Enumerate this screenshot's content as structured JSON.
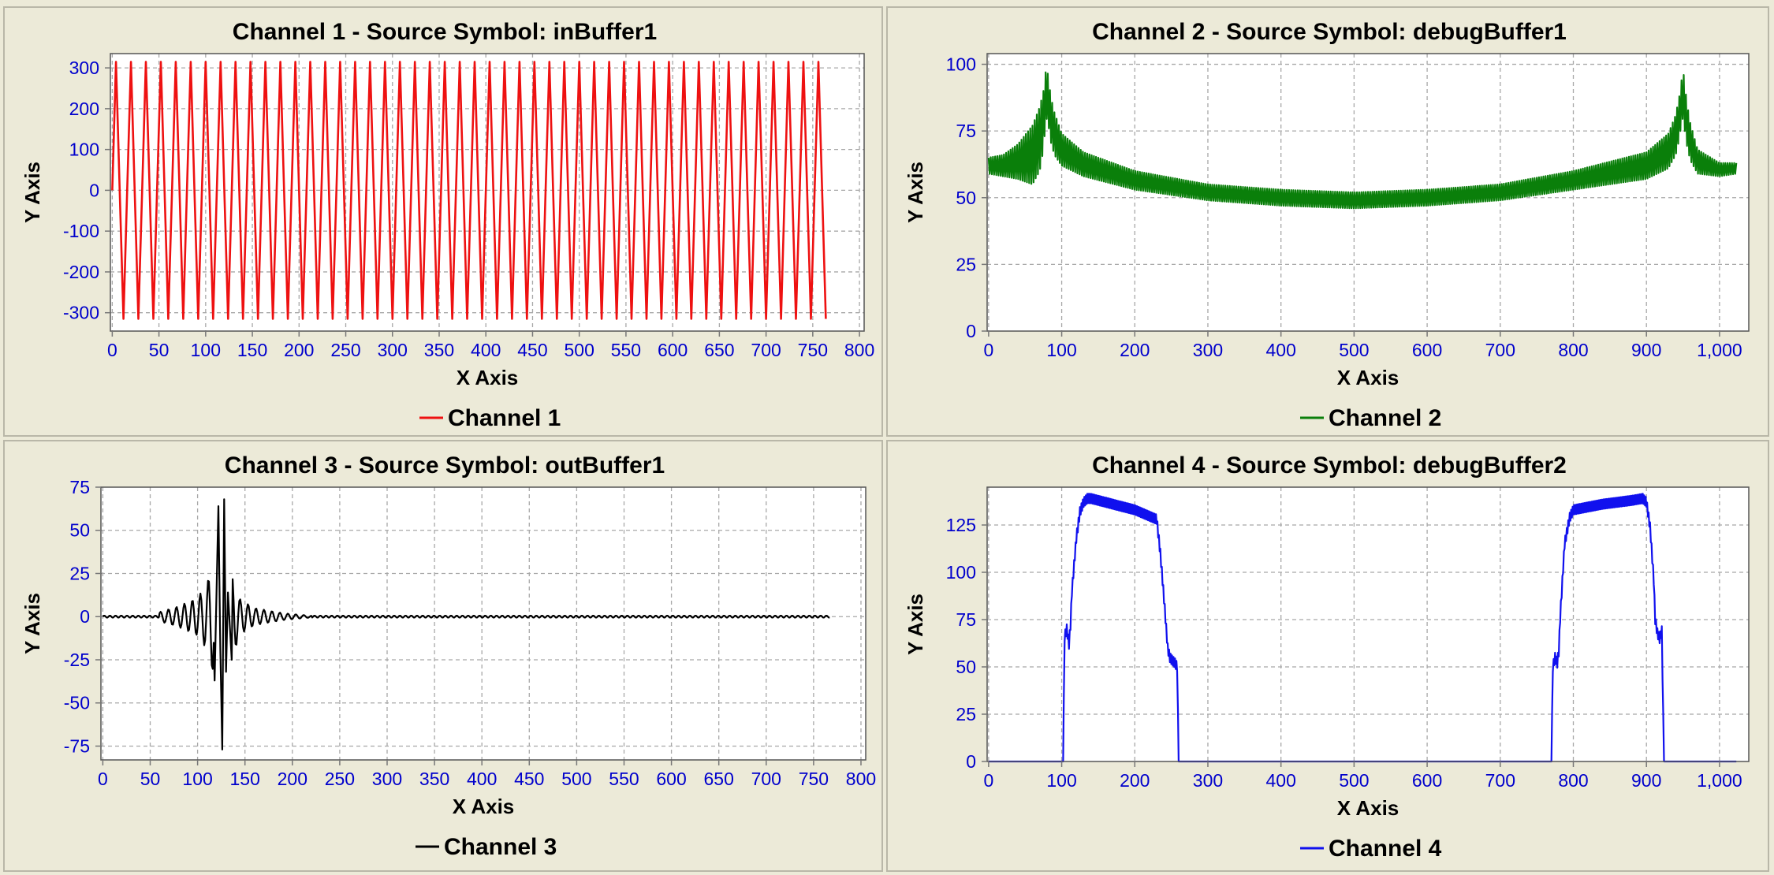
{
  "chart_data": [
    {
      "type": "line",
      "title": "Channel 1 - Source Symbol: inBuffer1",
      "xlabel": "X Axis",
      "ylabel": "Y Axis",
      "xlim": [
        -2,
        805
      ],
      "ylim": [
        -345,
        335
      ],
      "xticks": [
        0,
        50,
        100,
        150,
        200,
        250,
        300,
        350,
        400,
        450,
        500,
        550,
        600,
        650,
        700,
        750,
        800
      ],
      "xtick_labels": [
        "0",
        "50",
        "100",
        "150",
        "200",
        "250",
        "300",
        "350",
        "400",
        "450",
        "500",
        "550",
        "600",
        "650",
        "700",
        "750",
        "800"
      ],
      "yticks": [
        -300,
        -200,
        -100,
        0,
        100,
        200,
        300
      ],
      "ytick_labels": [
        "-300",
        "-200",
        "-100",
        "0",
        "100",
        "200",
        "300"
      ],
      "series": [
        {
          "name": "Channel 1",
          "color": "#ee1111",
          "model": "sine",
          "x_range": [
            0,
            767
          ],
          "amplitude": 315,
          "period": 16,
          "values": [
            0,
            315,
            0,
            -315
          ]
        }
      ]
    },
    {
      "type": "line",
      "title": "Channel 2 - Source Symbol: debugBuffer1",
      "xlabel": "X Axis",
      "ylabel": "Y Axis",
      "xlim": [
        -2,
        1040
      ],
      "ylim": [
        0,
        104
      ],
      "xticks": [
        0,
        100,
        200,
        300,
        400,
        500,
        600,
        700,
        800,
        900,
        1000
      ],
      "xtick_labels": [
        "0",
        "100",
        "200",
        "300",
        "400",
        "500",
        "600",
        "700",
        "800",
        "900",
        "1,000"
      ],
      "yticks": [
        0,
        25,
        50,
        75,
        100
      ],
      "ytick_labels": [
        "0",
        "25",
        "50",
        "75",
        "100"
      ],
      "series": [
        {
          "name": "Channel 2",
          "color": "#0a7f0a",
          "model": "envelope-oscillating",
          "x": [
            0,
            20,
            40,
            60,
            70,
            75,
            78,
            80,
            82,
            85,
            90,
            100,
            130,
            200,
            300,
            400,
            500,
            600,
            700,
            800,
            900,
            930,
            940,
            945,
            948,
            950,
            952,
            955,
            960,
            970,
            1000,
            1023
          ],
          "upper": [
            65,
            66,
            70,
            77,
            84,
            90,
            97,
            98,
            95,
            88,
            82,
            74,
            67,
            60,
            55,
            53,
            52,
            53,
            55,
            60,
            67,
            74,
            81,
            88,
            94,
            98,
            94,
            86,
            78,
            68,
            63,
            63
          ],
          "lower": [
            59,
            58,
            57,
            55,
            60,
            68,
            78,
            80,
            77,
            71,
            66,
            62,
            58,
            53,
            49,
            47,
            46,
            47,
            49,
            53,
            57,
            61,
            66,
            72,
            78,
            80,
            76,
            70,
            64,
            59,
            58,
            59
          ]
        }
      ]
    },
    {
      "type": "line",
      "title": "Channel 3 - Source Symbol: outBuffer1",
      "xlabel": "X Axis",
      "ylabel": "Y Axis",
      "xlim": [
        -2,
        805
      ],
      "ylim": [
        -83,
        75
      ],
      "xticks": [
        0,
        50,
        100,
        150,
        200,
        250,
        300,
        350,
        400,
        450,
        500,
        550,
        600,
        650,
        700,
        750,
        800
      ],
      "xtick_labels": [
        "0",
        "50",
        "100",
        "150",
        "200",
        "250",
        "300",
        "350",
        "400",
        "450",
        "500",
        "550",
        "600",
        "650",
        "700",
        "750",
        "800"
      ],
      "yticks": [
        -75,
        -50,
        -25,
        0,
        25,
        50,
        75
      ],
      "ytick_labels": [
        "-75",
        "-50",
        "-25",
        "0",
        "25",
        "50",
        "75"
      ],
      "series": [
        {
          "name": "Channel 3",
          "color": "#000000",
          "model": "burst",
          "x_range": [
            0,
            767
          ],
          "x": [
            0,
            50,
            80,
            100,
            110,
            118,
            122,
            124,
            126,
            128,
            130,
            132,
            136,
            145,
            160,
            190,
            220,
            767
          ],
          "y": [
            0,
            1,
            -6,
            11,
            -19,
            -37,
            64,
            -18,
            -77,
            68,
            -32,
            14,
            -25,
            10,
            5,
            2,
            0.5,
            0
          ]
        }
      ]
    },
    {
      "type": "line",
      "title": "Channel 4 - Source Symbol: debugBuffer2",
      "xlabel": "X Axis",
      "ylabel": "Y Axis",
      "xlim": [
        -2,
        1040
      ],
      "ylim": [
        0,
        145
      ],
      "xticks": [
        0,
        100,
        200,
        300,
        400,
        500,
        600,
        700,
        800,
        900,
        1000
      ],
      "xtick_labels": [
        "0",
        "100",
        "200",
        "300",
        "400",
        "500",
        "600",
        "700",
        "800",
        "900",
        "1,000"
      ],
      "yticks": [
        0,
        25,
        50,
        75,
        100,
        125
      ],
      "ytick_labels": [
        "0",
        "25",
        "50",
        "75",
        "100",
        "125"
      ],
      "series": [
        {
          "name": "Channel 4",
          "color": "#1010ee",
          "model": "plateau",
          "x": [
            0,
            102,
            104,
            107,
            110,
            112,
            114,
            120,
            125,
            130,
            135,
            140,
            160,
            200,
            230,
            235,
            240,
            245,
            248,
            250,
            255,
            258,
            260,
            770,
            772,
            775,
            778,
            780,
            782,
            788,
            795,
            800,
            840,
            880,
            895,
            900,
            905,
            910,
            912,
            915,
            918,
            921,
            924,
            1023
          ],
          "y": [
            0,
            0,
            66,
            70,
            62,
            72,
            90,
            118,
            132,
            137,
            139,
            139,
            137,
            133,
            128,
            110,
            86,
            60,
            55,
            54,
            52,
            50,
            0,
            0,
            50,
            55,
            52,
            58,
            76,
            115,
            129,
            133,
            136,
            138,
            139,
            137,
            124,
            96,
            75,
            68,
            65,
            69,
            0,
            0
          ]
        }
      ]
    }
  ]
}
